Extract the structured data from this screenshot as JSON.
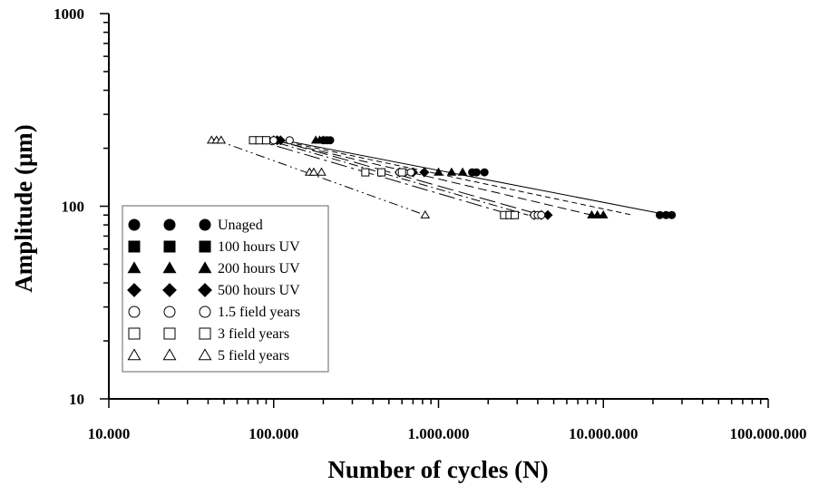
{
  "chart_data": {
    "type": "scatter",
    "xlabel": "Number of cycles (N)",
    "ylabel": "Amplitude (μm)",
    "xscale": "log",
    "yscale": "log",
    "xlim": [
      10000,
      100000000
    ],
    "ylim": [
      10,
      1000
    ],
    "x_tick_labels": [
      "10.000",
      "100.000",
      "1.000.000",
      "10.000.000",
      "100.000.000"
    ],
    "y_tick_labels": [
      "10",
      "100",
      "1000"
    ],
    "legend_position": "lower-left",
    "grid": false,
    "series": [
      {
        "name": "Unaged",
        "marker": "circle-filled",
        "line_style": "solid",
        "points": [
          [
            200000,
            220
          ],
          [
            210000,
            220
          ],
          [
            220000,
            220
          ],
          [
            1600000,
            150
          ],
          [
            1700000,
            150
          ],
          [
            1900000,
            150
          ],
          [
            22000000,
            90
          ],
          [
            24000000,
            90
          ],
          [
            26000000,
            90
          ]
        ],
        "fit": [
          [
            100000,
            225
          ],
          [
            25000000,
            90
          ]
        ]
      },
      {
        "name": "100 hours UV",
        "marker": "square-filled",
        "line_style": "short-dash",
        "points": [],
        "fit": [
          [
            95000,
            225
          ],
          [
            15000000,
            90
          ]
        ]
      },
      {
        "name": "200 hours UV",
        "marker": "triangle-filled",
        "line_style": "dash",
        "points": [
          [
            180000,
            220
          ],
          [
            190000,
            220
          ],
          [
            200000,
            220
          ],
          [
            1000000,
            150
          ],
          [
            1200000,
            150
          ],
          [
            1400000,
            150
          ],
          [
            8500000,
            90
          ],
          [
            9200000,
            90
          ],
          [
            10000000,
            90
          ]
        ],
        "fit": [
          [
            90000,
            225
          ],
          [
            8500000,
            90
          ]
        ]
      },
      {
        "name": "500 hours UV",
        "marker": "diamond-filled",
        "line_style": "long-dash",
        "points": [
          [
            100000,
            220
          ],
          [
            105000,
            220
          ],
          [
            110000,
            220
          ],
          [
            580000,
            150
          ],
          [
            700000,
            150
          ],
          [
            820000,
            150
          ],
          [
            3800000,
            90
          ],
          [
            4200000,
            90
          ],
          [
            4600000,
            90
          ]
        ],
        "fit": [
          [
            95000,
            225
          ],
          [
            4200000,
            90
          ]
        ]
      },
      {
        "name": "1.5 field years",
        "marker": "circle-open",
        "line_style": "dash-dot",
        "points": [
          [
            90000,
            220
          ],
          [
            100000,
            220
          ],
          [
            125000,
            220
          ],
          [
            580000,
            150
          ],
          [
            620000,
            150
          ],
          [
            680000,
            150
          ],
          [
            3800000,
            90
          ],
          [
            4000000,
            90
          ],
          [
            4200000,
            90
          ]
        ],
        "fit": [
          [
            85000,
            225
          ],
          [
            3500000,
            90
          ]
        ]
      },
      {
        "name": "3 field years",
        "marker": "square-open",
        "line_style": "long-dash-dot",
        "points": [
          [
            75000,
            220
          ],
          [
            82000,
            220
          ],
          [
            90000,
            220
          ],
          [
            360000,
            150
          ],
          [
            450000,
            150
          ],
          [
            600000,
            150
          ],
          [
            2500000,
            90
          ],
          [
            2700000,
            90
          ],
          [
            2900000,
            90
          ]
        ],
        "fit": [
          [
            72000,
            225
          ],
          [
            2800000,
            90
          ]
        ]
      },
      {
        "name": "5 field years",
        "marker": "triangle-open",
        "line_style": "dash-dot-dot",
        "points": [
          [
            42000,
            220
          ],
          [
            45000,
            220
          ],
          [
            48000,
            220
          ],
          [
            165000,
            150
          ],
          [
            175000,
            150
          ],
          [
            195000,
            150
          ],
          [
            830000,
            90
          ]
        ],
        "fit": [
          [
            42000,
            225
          ],
          [
            830000,
            90
          ]
        ]
      }
    ]
  }
}
